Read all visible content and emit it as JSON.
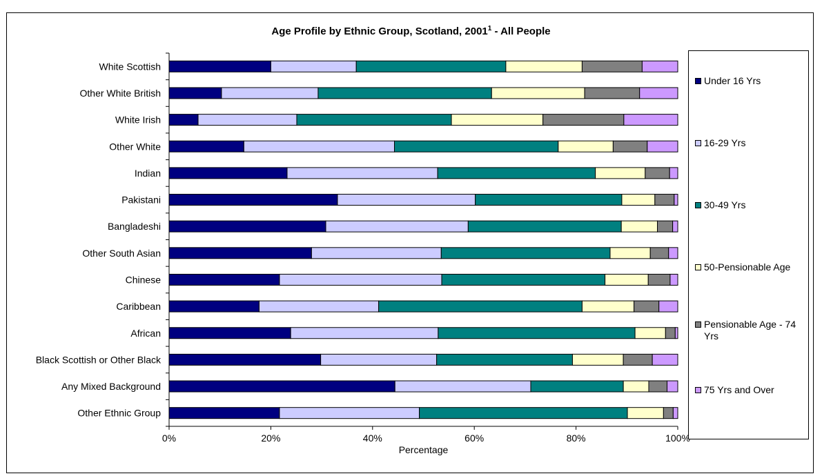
{
  "chart_data": {
    "type": "bar",
    "orientation": "horizontal",
    "stacked": "100%",
    "title": "Age Profile by Ethnic Group, Scotland, 2001",
    "title_superscript": "1",
    "title_suffix": " - All People",
    "xlabel": "Percentage",
    "ylabel": "",
    "xlim": [
      0,
      100
    ],
    "x_ticks": [
      "0%",
      "20%",
      "40%",
      "60%",
      "80%",
      "100%"
    ],
    "grid": false,
    "legend_position": "right",
    "categories": [
      "White Scottish",
      "Other White British",
      "White Irish",
      "Other White",
      "Indian",
      "Pakistani",
      "Bangladeshi",
      "Other South Asian",
      "Chinese",
      "Caribbean",
      "African",
      "Black Scottish or Other Black",
      "Any Mixed Background",
      "Other Ethnic Group"
    ],
    "series": [
      {
        "name": "Under 16 Yrs",
        "color": "#000080",
        "values": [
          20,
          10.3,
          5.7,
          14.7,
          23.2,
          33.1,
          30.8,
          28,
          21.7,
          17.7,
          23.9,
          29.8,
          44.4,
          21.7
        ]
      },
      {
        "name": "16-29 Yrs",
        "color": "#ccccff",
        "values": [
          16.8,
          19,
          19.4,
          29.6,
          29.6,
          27.1,
          28,
          25.5,
          31.9,
          23.5,
          29,
          22.8,
          26.7,
          27.5
        ]
      },
      {
        "name": "30-49 Yrs",
        "color": "#008080",
        "values": [
          29.4,
          34.1,
          30.4,
          32.2,
          31,
          28.8,
          30.1,
          33.2,
          32.1,
          40,
          38.7,
          26.7,
          18.2,
          40.9
        ]
      },
      {
        "name": "50-Pensionable Age",
        "color": "#ffffcc",
        "values": [
          15,
          18.3,
          18,
          10.8,
          9.8,
          6.5,
          7.1,
          7.9,
          8.5,
          10.2,
          6,
          10,
          5,
          7.1
        ]
      },
      {
        "name": "Pensionable Age - 74 Yrs",
        "color": "#808080",
        "values": [
          11.8,
          10.8,
          15.9,
          6.7,
          4.8,
          3.8,
          3,
          3.6,
          4.3,
          4.9,
          1.9,
          5.7,
          3.6,
          1.9
        ]
      },
      {
        "name": "75 Yrs and Over",
        "color": "#cc99ff",
        "values": [
          7,
          7.5,
          10.6,
          6,
          1.6,
          0.7,
          1,
          1.8,
          1.5,
          3.7,
          0.5,
          5,
          2.1,
          0.9
        ]
      }
    ]
  }
}
